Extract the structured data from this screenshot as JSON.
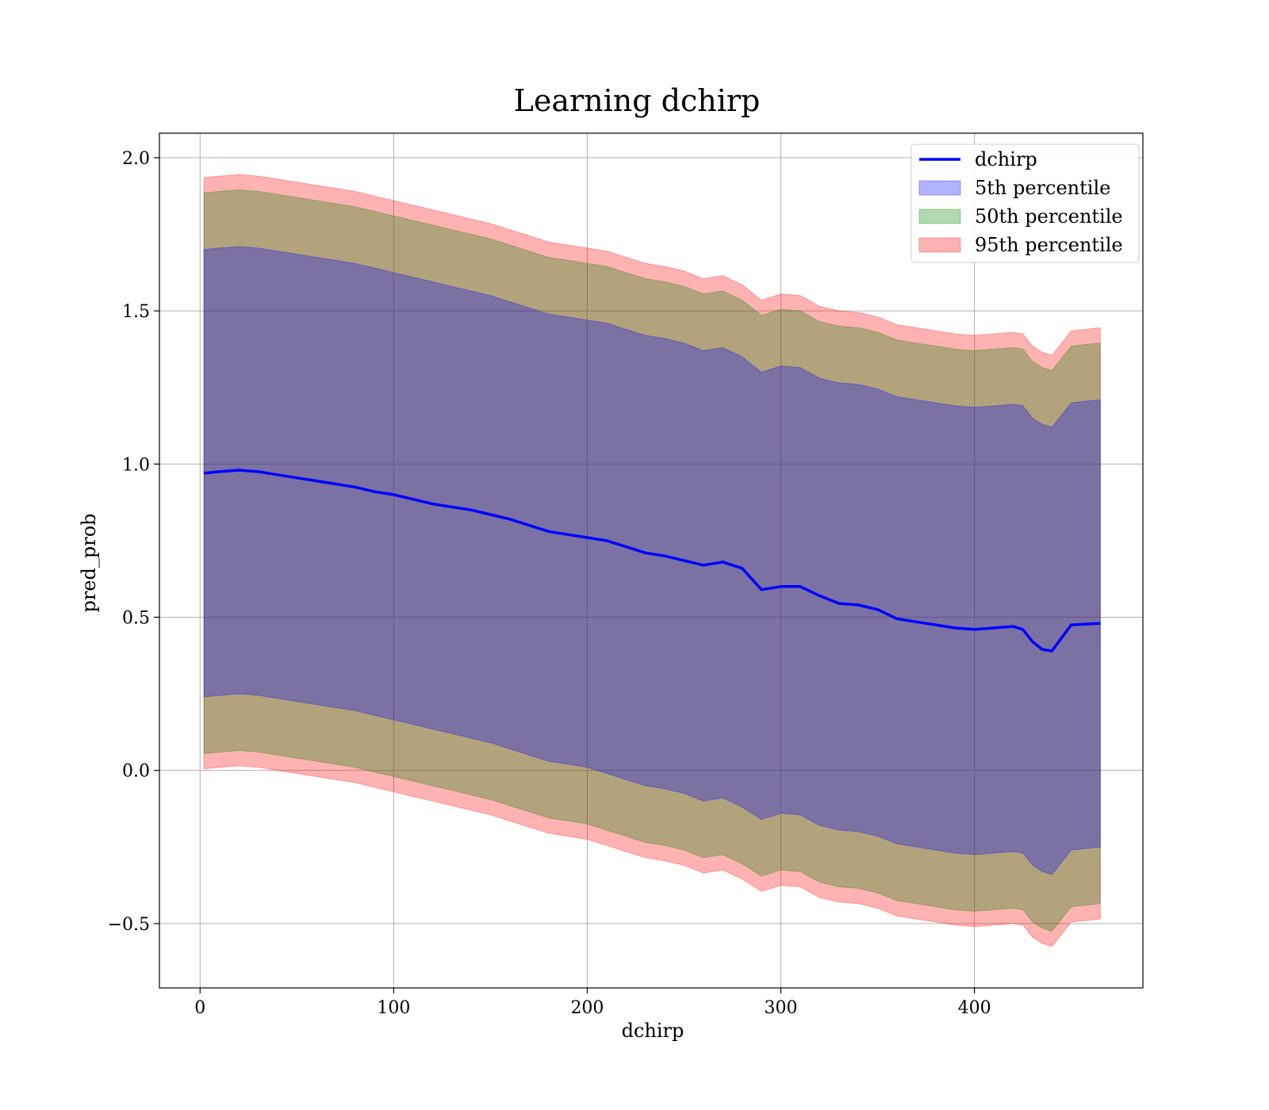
{
  "chart_data": {
    "type": "line",
    "title": "Learning dchirp",
    "xlabel": "dchirp",
    "ylabel": "pred_prob",
    "xlim": [
      -21,
      487
    ],
    "ylim": [
      -0.71,
      2.08
    ],
    "xticks": [
      0,
      100,
      200,
      300,
      400
    ],
    "xtick_labels": [
      "0",
      "100",
      "200",
      "300",
      "400"
    ],
    "yticks": [
      -0.5,
      0.0,
      0.5,
      1.0,
      1.5,
      2.0
    ],
    "ytick_labels": [
      "−0.5",
      "0.0",
      "0.5",
      "1.0",
      "1.5",
      "2.0"
    ],
    "grid": true,
    "legend_position": "top-right",
    "colors": {
      "line": "#0000ff",
      "band_5th": "#0000ff",
      "band_50th": "#008000",
      "band_95th": "#ff0000"
    },
    "x": [
      2,
      10,
      20,
      30,
      40,
      50,
      60,
      70,
      80,
      90,
      100,
      110,
      120,
      130,
      140,
      150,
      160,
      170,
      180,
      190,
      200,
      210,
      220,
      230,
      240,
      250,
      260,
      270,
      280,
      290,
      300,
      310,
      320,
      330,
      340,
      350,
      360,
      370,
      380,
      390,
      400,
      410,
      420,
      425,
      430,
      435,
      440,
      450,
      465
    ],
    "series": [
      {
        "name": "dchirp",
        "kind": "line",
        "values": [
          0.97,
          0.975,
          0.98,
          0.975,
          0.965,
          0.955,
          0.945,
          0.935,
          0.925,
          0.91,
          0.9,
          0.885,
          0.87,
          0.86,
          0.85,
          0.835,
          0.82,
          0.8,
          0.78,
          0.77,
          0.76,
          0.75,
          0.73,
          0.71,
          0.7,
          0.685,
          0.67,
          0.68,
          0.66,
          0.59,
          0.6,
          0.6,
          0.57,
          0.545,
          0.54,
          0.525,
          0.495,
          0.485,
          0.475,
          0.465,
          0.46,
          0.465,
          0.47,
          0.46,
          0.42,
          0.395,
          0.39,
          0.475,
          0.48
        ]
      },
      {
        "name": "5th percentile",
        "kind": "band",
        "upper": [
          1.7,
          1.705,
          1.71,
          1.705,
          1.695,
          1.685,
          1.675,
          1.665,
          1.655,
          1.64,
          1.625,
          1.61,
          1.595,
          1.58,
          1.565,
          1.55,
          1.53,
          1.51,
          1.49,
          1.48,
          1.47,
          1.46,
          1.44,
          1.42,
          1.41,
          1.395,
          1.37,
          1.38,
          1.35,
          1.3,
          1.32,
          1.315,
          1.28,
          1.265,
          1.26,
          1.245,
          1.22,
          1.21,
          1.2,
          1.19,
          1.185,
          1.19,
          1.195,
          1.19,
          1.15,
          1.13,
          1.12,
          1.2,
          1.21
        ],
        "lower": [
          0.24,
          0.245,
          0.25,
          0.245,
          0.235,
          0.225,
          0.215,
          0.205,
          0.195,
          0.18,
          0.165,
          0.15,
          0.135,
          0.12,
          0.105,
          0.09,
          0.07,
          0.05,
          0.03,
          0.02,
          0.01,
          -0.01,
          -0.03,
          -0.05,
          -0.06,
          -0.075,
          -0.1,
          -0.09,
          -0.12,
          -0.16,
          -0.14,
          -0.145,
          -0.18,
          -0.195,
          -0.2,
          -0.215,
          -0.24,
          -0.25,
          -0.26,
          -0.27,
          -0.275,
          -0.27,
          -0.265,
          -0.27,
          -0.31,
          -0.33,
          -0.34,
          -0.26,
          -0.25
        ]
      },
      {
        "name": "50th percentile",
        "kind": "band",
        "upper": [
          1.885,
          1.89,
          1.895,
          1.89,
          1.88,
          1.87,
          1.86,
          1.85,
          1.84,
          1.825,
          1.81,
          1.795,
          1.78,
          1.765,
          1.75,
          1.735,
          1.715,
          1.695,
          1.675,
          1.665,
          1.655,
          1.645,
          1.625,
          1.605,
          1.595,
          1.58,
          1.555,
          1.565,
          1.535,
          1.485,
          1.505,
          1.5,
          1.465,
          1.45,
          1.445,
          1.43,
          1.405,
          1.395,
          1.385,
          1.375,
          1.37,
          1.375,
          1.38,
          1.375,
          1.335,
          1.315,
          1.305,
          1.385,
          1.395
        ],
        "lower": [
          0.055,
          0.06,
          0.065,
          0.06,
          0.05,
          0.04,
          0.03,
          0.02,
          0.01,
          -0.005,
          -0.02,
          -0.035,
          -0.05,
          -0.065,
          -0.08,
          -0.095,
          -0.115,
          -0.135,
          -0.155,
          -0.165,
          -0.175,
          -0.195,
          -0.215,
          -0.235,
          -0.245,
          -0.26,
          -0.285,
          -0.275,
          -0.305,
          -0.345,
          -0.325,
          -0.33,
          -0.365,
          -0.38,
          -0.385,
          -0.4,
          -0.425,
          -0.435,
          -0.445,
          -0.455,
          -0.46,
          -0.455,
          -0.45,
          -0.455,
          -0.495,
          -0.515,
          -0.525,
          -0.445,
          -0.435
        ]
      },
      {
        "name": "95th percentile",
        "kind": "band",
        "upper": [
          1.935,
          1.94,
          1.945,
          1.94,
          1.93,
          1.92,
          1.91,
          1.9,
          1.89,
          1.875,
          1.86,
          1.845,
          1.83,
          1.815,
          1.8,
          1.785,
          1.765,
          1.745,
          1.725,
          1.715,
          1.705,
          1.695,
          1.675,
          1.655,
          1.645,
          1.63,
          1.605,
          1.615,
          1.585,
          1.535,
          1.555,
          1.55,
          1.515,
          1.5,
          1.495,
          1.48,
          1.455,
          1.445,
          1.435,
          1.425,
          1.42,
          1.425,
          1.43,
          1.425,
          1.385,
          1.365,
          1.355,
          1.435,
          1.445
        ],
        "lower": [
          0.005,
          0.01,
          0.015,
          0.01,
          0.0,
          -0.01,
          -0.02,
          -0.03,
          -0.04,
          -0.055,
          -0.07,
          -0.085,
          -0.1,
          -0.115,
          -0.13,
          -0.145,
          -0.165,
          -0.185,
          -0.205,
          -0.215,
          -0.225,
          -0.245,
          -0.265,
          -0.285,
          -0.295,
          -0.31,
          -0.335,
          -0.325,
          -0.355,
          -0.395,
          -0.375,
          -0.38,
          -0.415,
          -0.43,
          -0.435,
          -0.45,
          -0.475,
          -0.485,
          -0.495,
          -0.505,
          -0.51,
          -0.505,
          -0.5,
          -0.505,
          -0.545,
          -0.565,
          -0.575,
          -0.495,
          -0.485
        ]
      }
    ]
  }
}
